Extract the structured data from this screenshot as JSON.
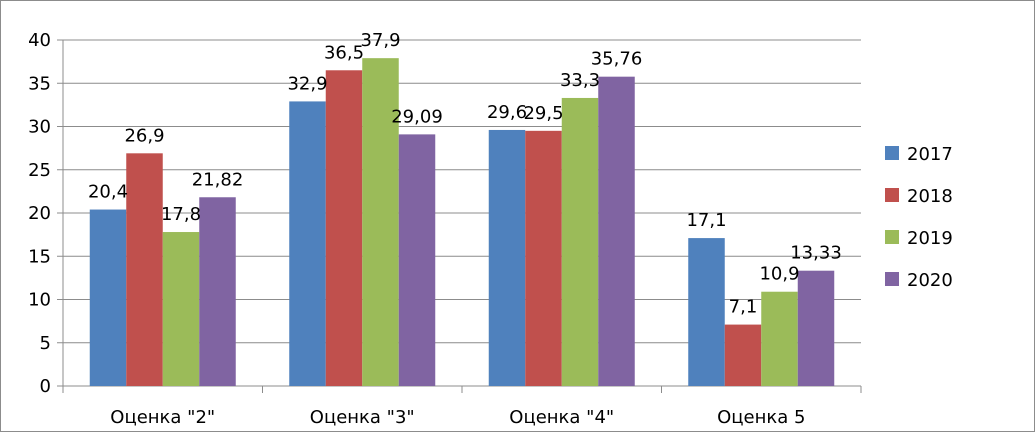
{
  "chart_data": {
    "type": "bar",
    "title": "",
    "xlabel": "",
    "ylabel": "",
    "categories": [
      "Оценка \"2\"",
      "Оценка \"3\"",
      "Оценка \"4\"",
      "Оценка 5"
    ],
    "series": [
      {
        "name": "2017",
        "color": "#4f81bd",
        "values": [
          20.4,
          32.9,
          29.6,
          17.1
        ],
        "labels": [
          "20,4",
          "32,9",
          "29,6",
          "17,1"
        ]
      },
      {
        "name": "2018",
        "color": "#c0504d",
        "values": [
          26.9,
          36.5,
          29.5,
          7.1
        ],
        "labels": [
          "26,9",
          "36,5",
          "29,5",
          "7,1"
        ]
      },
      {
        "name": "2019",
        "color": "#9bbb59",
        "values": [
          17.8,
          37.9,
          33.3,
          10.9
        ],
        "labels": [
          "17,8",
          "37,9",
          "33,3",
          "10,9"
        ]
      },
      {
        "name": "2020",
        "color": "#8064a2",
        "values": [
          21.82,
          29.09,
          35.76,
          13.33
        ],
        "labels": [
          "21,82",
          "29,09",
          "35,76",
          "13,33"
        ]
      }
    ],
    "ylim": [
      0,
      40
    ],
    "yticks": [
      0,
      5,
      10,
      15,
      20,
      25,
      30,
      35,
      40
    ],
    "grid": true,
    "legend_position": "right"
  }
}
